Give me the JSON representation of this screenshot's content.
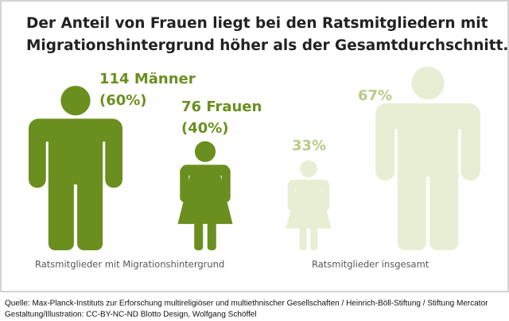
{
  "chart_data": {
    "type": "pictogram",
    "title": [
      "Der Anteil von Frauen liegt bei den Ratsmitgliedern mit",
      "Migrationshintergrund höher als der Gesamtdurchschnitt."
    ],
    "groups": [
      {
        "name": "Ratsmitglieder mit Migrationshintergrund",
        "color": "#6a8f1f",
        "items": [
          {
            "figure": "man",
            "label": "114 Männer",
            "value": 60,
            "value_label": "(60%)"
          },
          {
            "figure": "woman",
            "label": "76 Frauen",
            "value": 40,
            "value_label": "(40%)"
          }
        ]
      },
      {
        "name": "Ratsmitglieder insgesamt",
        "color": "#e8eed3",
        "items": [
          {
            "figure": "woman",
            "value": 33,
            "value_label": "33%"
          },
          {
            "figure": "man",
            "value": 67,
            "value_label": "67%"
          }
        ]
      }
    ],
    "source": [
      "Quelle: Max-Planck-Instituts zur Erforschung multireligiöser und multiethnischer Gesellschaften / Heinrich-Böll-Stiftung / Stiftung Mercator",
      "Gestaltung/Illustration: CC-BY-NC-ND Blotto Design, Wolfgang Schöffel"
    ]
  }
}
